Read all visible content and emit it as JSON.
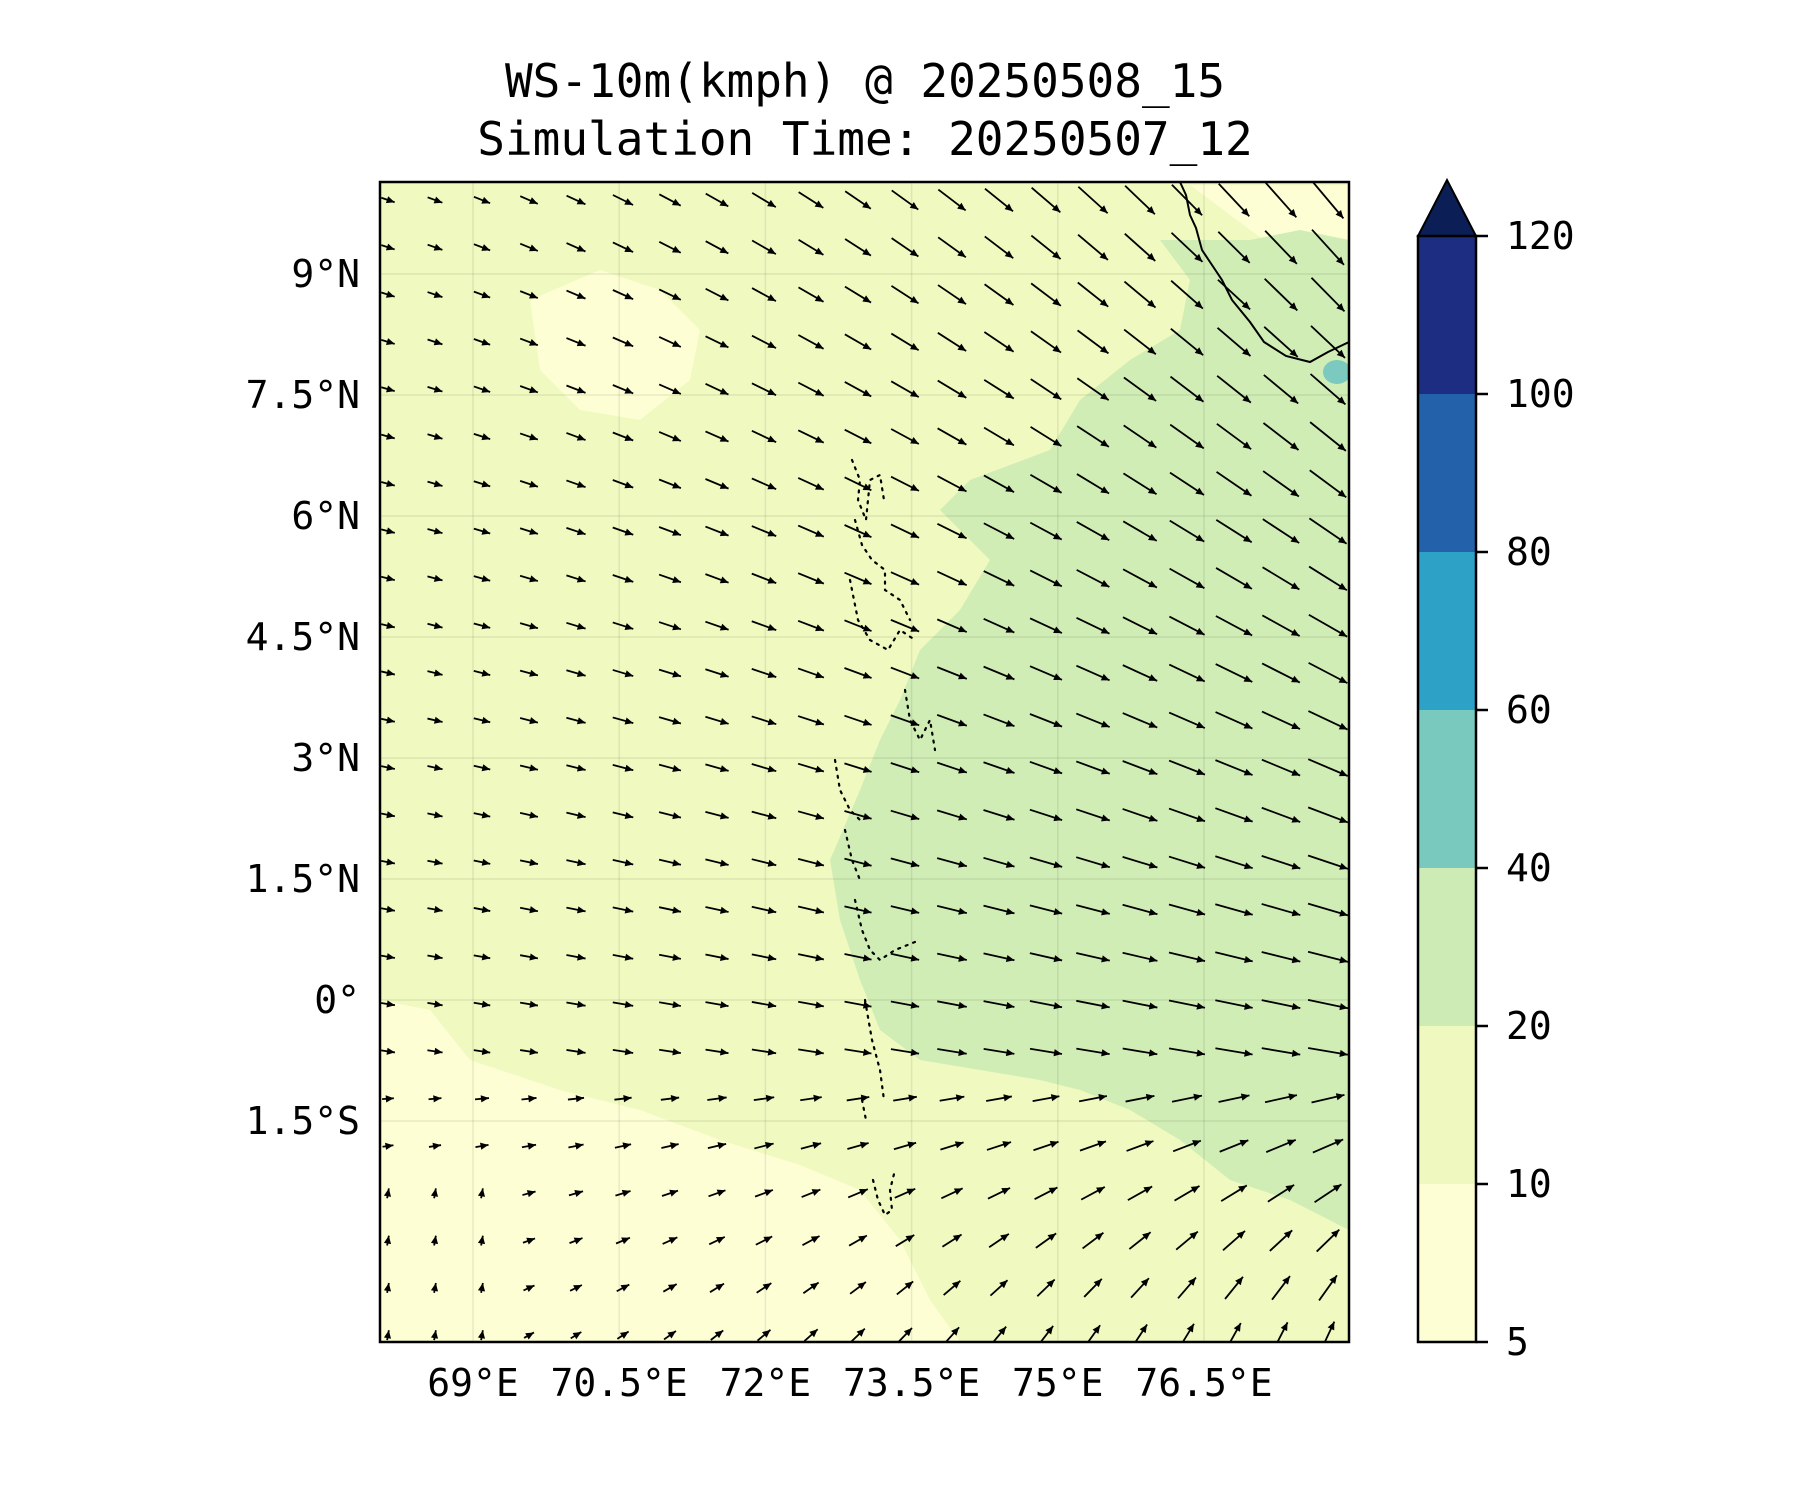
{
  "title": {
    "line1": "WS-10m(kmph) @ 20250508_15",
    "line2": "Simulation Time: 20250507_12"
  },
  "map": {
    "lon_ticks": [
      {
        "value": 69.0,
        "label": "69°E"
      },
      {
        "value": 70.5,
        "label": "70.5°E"
      },
      {
        "value": 72.0,
        "label": "72°E"
      },
      {
        "value": 73.5,
        "label": "73.5°E"
      },
      {
        "value": 75.0,
        "label": "75°E"
      },
      {
        "value": 76.5,
        "label": "76.5°E"
      }
    ],
    "lat_ticks": [
      {
        "value": 9.0,
        "label": "9°N"
      },
      {
        "value": 7.5,
        "label": "7.5°N"
      },
      {
        "value": 6.0,
        "label": "6°N"
      },
      {
        "value": 4.5,
        "label": "4.5°N"
      },
      {
        "value": 3.0,
        "label": "3°N"
      },
      {
        "value": 1.5,
        "label": "1.5°N"
      },
      {
        "value": 0.0,
        "label": "0°"
      },
      {
        "value": -1.5,
        "label": "1.5°S"
      }
    ],
    "lon_range": [
      68.0,
      78.0
    ],
    "lat_range": [
      -2.0,
      10.0
    ],
    "field_colors": {
      "band_5_10": "#fdfed4",
      "band_10_20": "#f0f9c0",
      "band_20_40": "#d1edb6",
      "band_40_60": "#7bc9bf"
    }
  },
  "colorbar": {
    "levels": [
      {
        "value": 5,
        "label": "5"
      },
      {
        "value": 10,
        "label": "10"
      },
      {
        "value": 20,
        "label": "20"
      },
      {
        "value": 40,
        "label": "40"
      },
      {
        "value": 60,
        "label": "60"
      },
      {
        "value": 80,
        "label": "80"
      },
      {
        "value": 100,
        "label": "100"
      },
      {
        "value": 120,
        "label": "120"
      }
    ],
    "colors": [
      "#fdfed4",
      "#eef8bf",
      "#cdebb4",
      "#79c9bf",
      "#2ea1c7",
      "#2362ab",
      "#1c2d82"
    ],
    "extend_color": "#0b1f56"
  }
}
